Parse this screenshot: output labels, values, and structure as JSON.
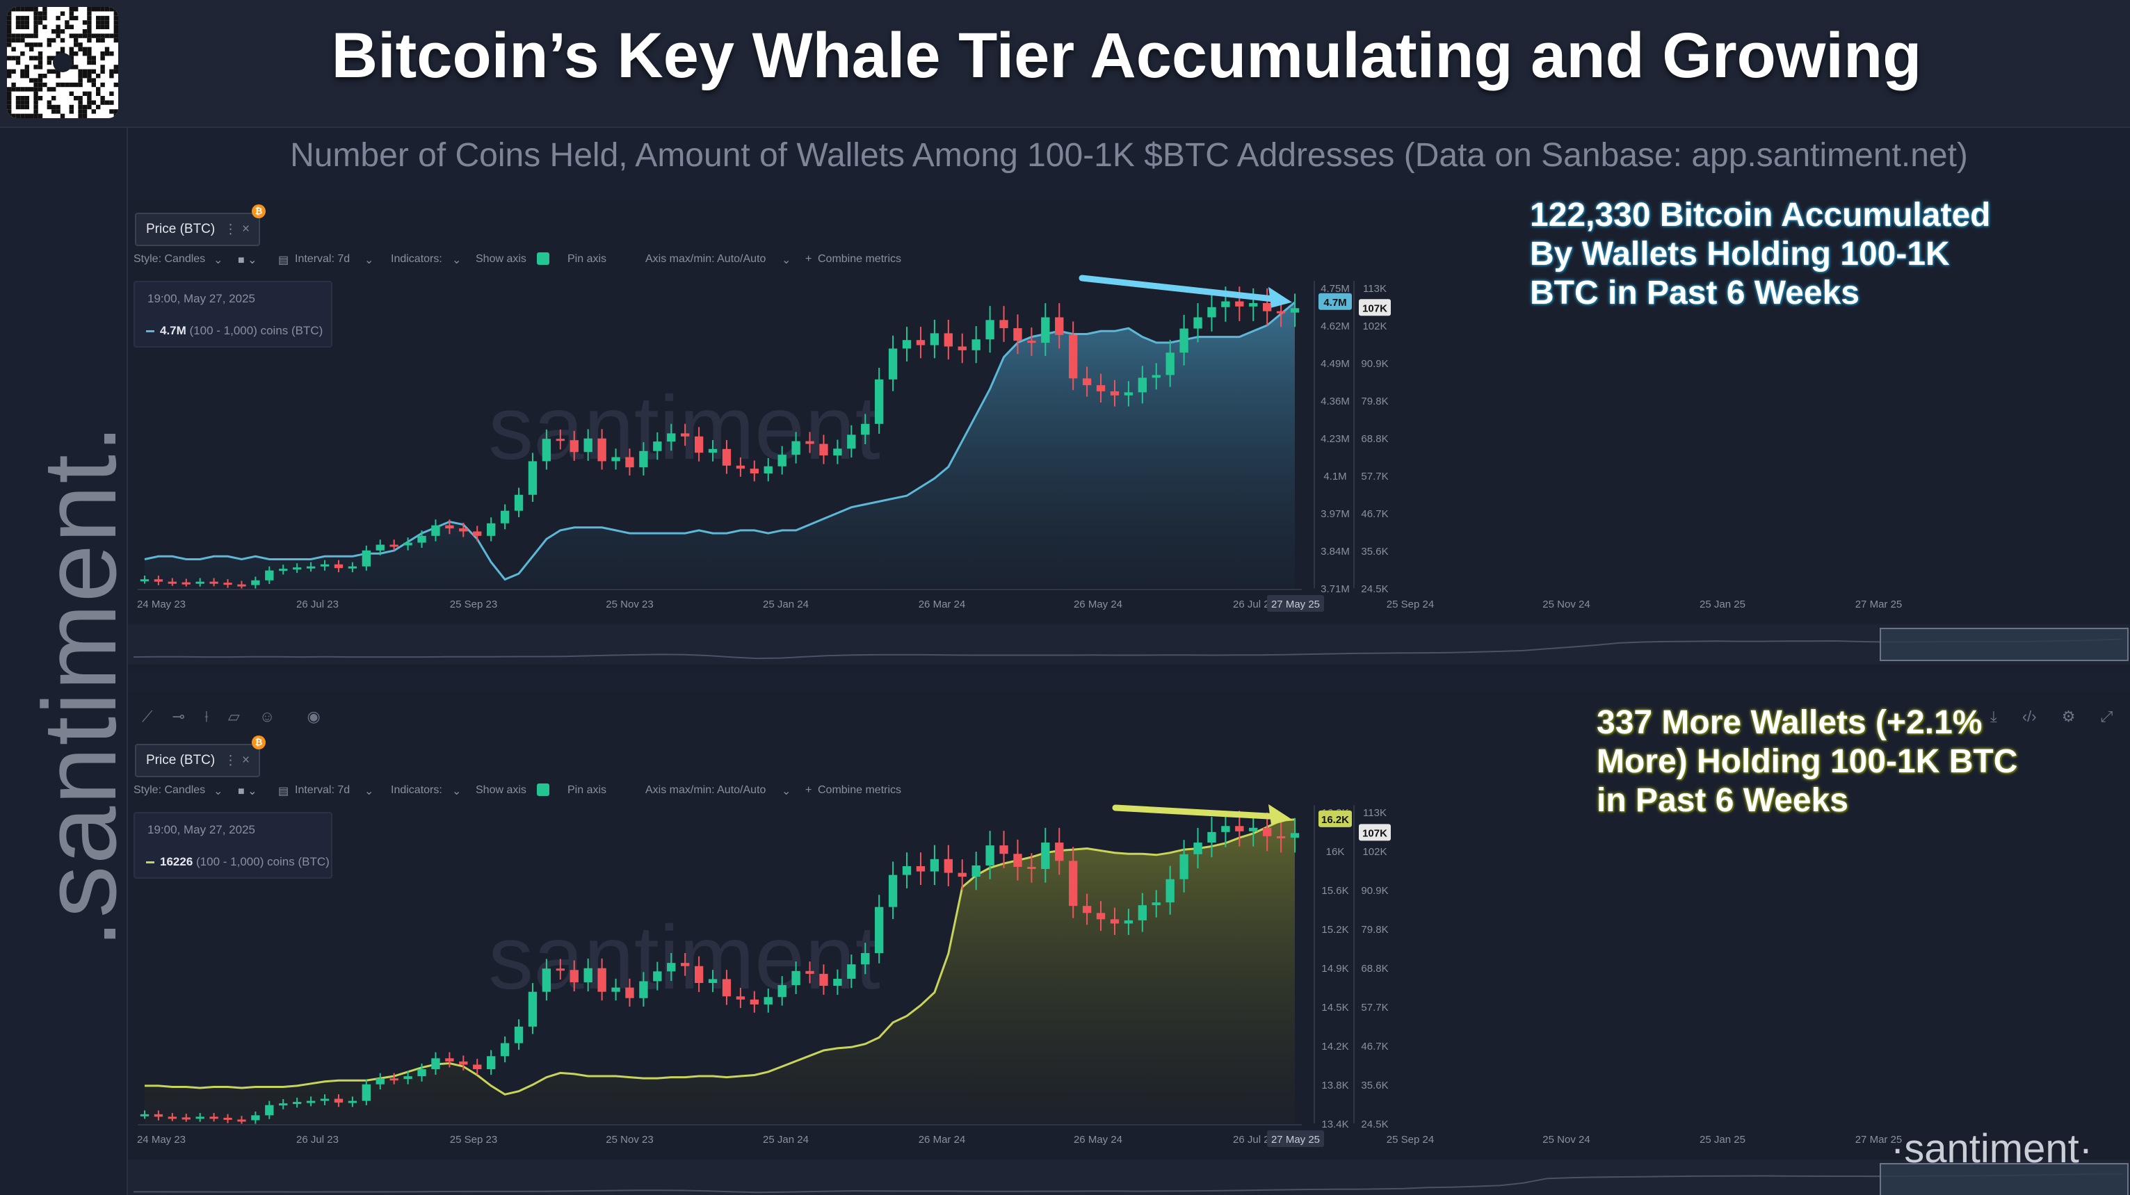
{
  "title": "Bitcoin’s Key Whale Tier Accumulating and Growing",
  "subtitle": "Number of Coins Held, Amount of Wallets Among 100-1K $BTC Addresses (Data on Sanbase: app.santiment.net)",
  "brand": {
    "vertical_logo": ".santiment.",
    "watermark": "santiment",
    "footer_logo": "·santiment·"
  },
  "colors": {
    "background": "#1b2030",
    "up_candle": "#23c592",
    "down_candle": "#f2545b",
    "coins_line": "#5db8d8",
    "wallets_line": "#c9d45a"
  },
  "toolbar": {
    "metric_label": "Price (BTC)",
    "more_icon": "⋮",
    "close_icon": "×",
    "style": "Style: Candles",
    "interval": "Interval: 7d",
    "indicators": "Indicators:",
    "show_axis": "Show axis",
    "pin_axis": "Pin axis",
    "axis_minmax": "Axis max/min: Auto/Auto",
    "combine": "Combine metrics"
  },
  "x_ticks": [
    "24 May 23",
    "26 Jul 23",
    "25 Sep 23",
    "25 Nov 23",
    "25 Jan 24",
    "26 Mar 24",
    "26 May 24",
    "26 Jul 24",
    "25 Sep 24",
    "25 Nov 24",
    "25 Jan 25",
    "27 Mar 25",
    "27 May 25"
  ],
  "price_ticks": [
    "113K",
    "102K",
    "90.9K",
    "79.8K",
    "68.8K",
    "57.7K",
    "46.7K",
    "35.6K",
    "24.5K"
  ],
  "panels": [
    {
      "legend_time": "19:00, May 27, 2025",
      "legend_value": "4.7M",
      "legend_series": "(100 - 1,000) coins (BTC)",
      "axis_ticks": [
        "4.75M",
        "4.62M",
        "4.49M",
        "4.36M",
        "4.23M",
        "4.1M",
        "3.97M",
        "3.84M",
        "3.71M"
      ],
      "last_label": "4.7M",
      "price_label": "107K",
      "date_label": "27 May 25",
      "annotation": [
        "122,330 Bitcoin Accumulated",
        "By Wallets Holding 100-1K",
        "BTC in Past 6 Weeks"
      ]
    },
    {
      "legend_time": "19:00, May 27, 2025",
      "legend_value": "16226",
      "legend_series": "(100 - 1,000) coins (BTC)",
      "axis_ticks": [
        "16.3K",
        "16K",
        "15.6K",
        "15.2K",
        "14.9K",
        "14.5K",
        "14.2K",
        "13.8K",
        "13.4K"
      ],
      "last_label": "16.2K",
      "price_label": "107K",
      "date_label": "27 May 25",
      "annotation": [
        "337 More Wallets (+2.1%",
        "More) Holding 100-1K BTC",
        "in Past 6 Weeks"
      ]
    }
  ],
  "chart_data": [
    {
      "type": "line",
      "title": "",
      "series": [
        {
          "name": "(100 - 1,000) coins (BTC)",
          "values": [
            3.81,
            3.82,
            3.82,
            3.81,
            3.81,
            3.82,
            3.82,
            3.81,
            3.82,
            3.81,
            3.81,
            3.81,
            3.81,
            3.82,
            3.82,
            3.82,
            3.83,
            3.83,
            3.84,
            3.87,
            3.9,
            3.92,
            3.94,
            3.93,
            3.88,
            3.8,
            3.74,
            3.76,
            3.82,
            3.88,
            3.91,
            3.92,
            3.92,
            3.92,
            3.91,
            3.9,
            3.9,
            3.9,
            3.9,
            3.9,
            3.91,
            3.9,
            3.9,
            3.91,
            3.91,
            3.9,
            3.91,
            3.91,
            3.93,
            3.95,
            3.97,
            3.99,
            4.0,
            4.01,
            4.02,
            4.03,
            4.06,
            4.09,
            4.13,
            4.22,
            4.31,
            4.4,
            4.51,
            4.56,
            4.58,
            4.59,
            4.6,
            4.59,
            4.59,
            4.6,
            4.6,
            4.61,
            4.58,
            4.56,
            4.56,
            4.57,
            4.58,
            4.58,
            4.58,
            4.58,
            4.6,
            4.62,
            4.66,
            4.7
          ]
        },
        {
          "name": "Price (BTC)",
          "open": [
            26.9,
            27.1,
            26.4,
            26.2,
            26.0,
            26.4,
            26.1,
            25.6,
            25.4,
            26.8,
            29.7,
            30.2,
            30.6,
            30.9,
            31.5,
            30.4,
            30.9,
            35.6,
            37.3,
            37.1,
            37.9,
            39.9,
            43.0,
            42.1,
            41.2,
            39.9,
            43.6,
            47.3,
            52.0,
            61.9,
            68.5,
            68.1,
            64.6,
            68.6,
            61.9,
            63.1,
            60.1,
            64.9,
            67.7,
            70.1,
            69.2,
            64.4,
            65.5,
            60.6,
            59.7,
            58.3,
            60.4,
            63.8,
            67.8,
            67.0,
            63.6,
            65.6,
            69.7,
            72.9,
            86.0,
            95.1,
            97.6,
            96.1,
            99.6,
            95.7,
            94.6,
            97.8,
            103.5,
            101.1,
            97.4,
            96.8,
            104.3,
            99.1,
            86.3,
            84.3,
            82.5,
            81.3,
            82.2,
            86.5,
            87.3,
            93.9,
            101.0,
            104.3,
            107.3,
            109.0,
            107.5,
            108.5,
            106.1,
            105.7
          ],
          "close": [
            27.1,
            26.4,
            26.2,
            26.0,
            26.4,
            26.1,
            25.6,
            25.4,
            26.8,
            29.7,
            30.2,
            30.6,
            30.9,
            31.5,
            30.4,
            30.9,
            35.6,
            37.3,
            37.1,
            37.9,
            39.9,
            43.0,
            42.1,
            41.2,
            39.9,
            43.6,
            47.3,
            52.0,
            61.9,
            68.5,
            68.1,
            64.6,
            68.6,
            61.9,
            63.1,
            60.1,
            64.9,
            67.7,
            70.1,
            69.2,
            64.4,
            65.5,
            60.6,
            59.7,
            58.3,
            60.4,
            63.8,
            67.8,
            67.0,
            63.6,
            65.6,
            69.7,
            72.9,
            86.0,
            95.1,
            97.6,
            96.1,
            99.6,
            95.7,
            94.6,
            97.8,
            103.5,
            101.1,
            97.4,
            96.8,
            104.3,
            99.1,
            86.3,
            84.3,
            82.5,
            81.3,
            82.2,
            86.5,
            87.3,
            93.9,
            101.0,
            104.3,
            107.3,
            109.0,
            107.5,
            108.5,
            106.1,
            105.7,
            107.0
          ]
        }
      ],
      "ylabel": "",
      "ylim": [
        3.71,
        4.75
      ],
      "price_ylim": [
        24.5,
        113
      ],
      "grid": false,
      "legend": "top-left"
    },
    {
      "type": "line",
      "title": "",
      "series": [
        {
          "name": "(100 - 1,000) coins (BTC)",
          "values": [
            13.75,
            13.75,
            13.74,
            13.74,
            13.73,
            13.74,
            13.74,
            13.73,
            13.74,
            13.74,
            13.74,
            13.75,
            13.77,
            13.79,
            13.8,
            13.8,
            13.8,
            13.82,
            13.84,
            13.88,
            13.92,
            13.95,
            13.96,
            13.93,
            13.85,
            13.75,
            13.67,
            13.7,
            13.76,
            13.83,
            13.87,
            13.86,
            13.84,
            13.84,
            13.84,
            13.83,
            13.82,
            13.82,
            13.83,
            13.83,
            13.84,
            13.84,
            13.83,
            13.84,
            13.85,
            13.88,
            13.93,
            13.98,
            14.03,
            14.08,
            14.1,
            14.11,
            14.14,
            14.2,
            14.34,
            14.4,
            14.5,
            14.62,
            14.98,
            15.6,
            15.71,
            15.78,
            15.82,
            15.85,
            15.88,
            15.92,
            15.94,
            15.95,
            15.96,
            15.94,
            15.92,
            15.91,
            15.91,
            15.9,
            15.92,
            15.95,
            15.96,
            15.98,
            16.01,
            16.06,
            16.1,
            16.16,
            16.22,
            16.23
          ]
        }
      ],
      "ylabel": "",
      "ylim": [
        13.4,
        16.3
      ],
      "price_ylim": [
        24.5,
        113
      ],
      "grid": false,
      "legend": "top-left"
    }
  ]
}
